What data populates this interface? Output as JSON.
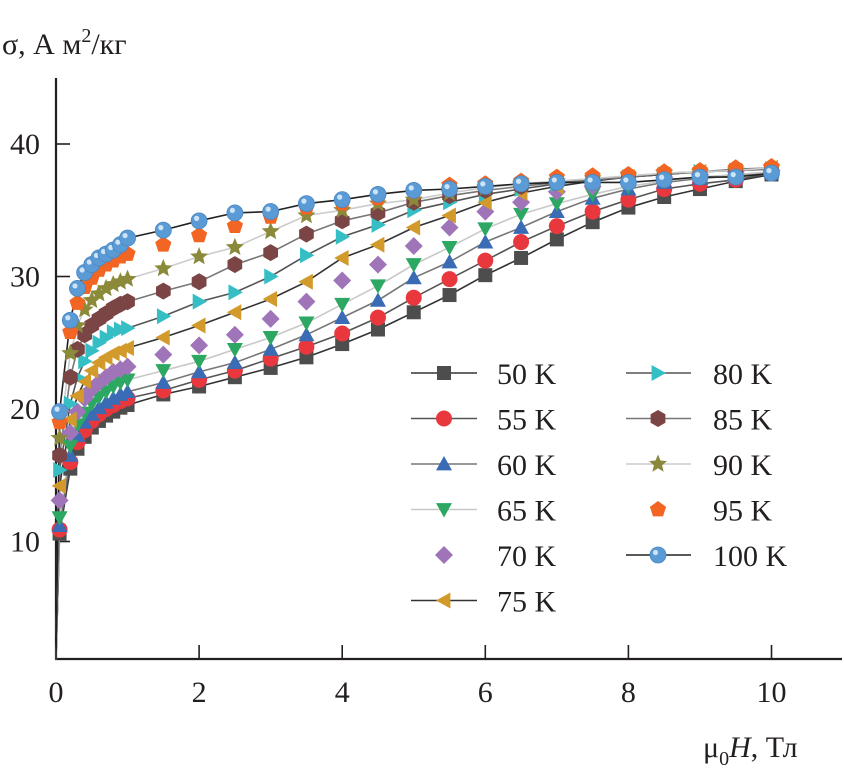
{
  "chart_data": {
    "type": "line",
    "title": "",
    "ylabel": "σ, А м²/кг",
    "ylabel_parts": {
      "main": "σ, А м",
      "sup": "2",
      "tail": "/кг"
    },
    "xlabel": "μ₀H, Тл",
    "xlabel_parts": {
      "mu": "μ",
      "sub": "0",
      "var": "H",
      "tail": ", Тл"
    },
    "xlim": [
      0,
      11
    ],
    "ylim": [
      1.1,
      45
    ],
    "xticks": [
      0,
      2,
      4,
      6,
      8,
      10
    ],
    "xtick_labels": [
      "0",
      "2",
      "4",
      "6",
      "8",
      "10"
    ],
    "yticks": [
      10,
      20,
      30,
      40
    ],
    "ytick_labels": [
      "10",
      "20",
      "30",
      "40"
    ],
    "grid": false,
    "legend_position": "center-right",
    "x": [
      0,
      0.05,
      0.2,
      0.3,
      0.4,
      0.5,
      0.6,
      0.7,
      0.8,
      0.9,
      1.0,
      1.5,
      2,
      2.5,
      3,
      3.5,
      4,
      4.5,
      5,
      5.5,
      6,
      6.5,
      7,
      7.5,
      8,
      8.5,
      9,
      9.5,
      10
    ],
    "series": [
      {
        "name": "50 K",
        "marker": "square",
        "color": "#4d4d4d",
        "line": "#333333",
        "values": [
          1.1,
          10.6,
          15.5,
          17.0,
          17.9,
          18.6,
          19.1,
          19.5,
          19.8,
          20.1,
          20.3,
          21.1,
          21.7,
          22.4,
          23.1,
          23.9,
          24.9,
          26.0,
          27.3,
          28.6,
          30.1,
          31.4,
          32.8,
          34.1,
          35.2,
          36.0,
          36.6,
          37.2,
          37.7
        ]
      },
      {
        "name": "55 K",
        "marker": "circle",
        "color": "#e8383d",
        "line": "#555555",
        "values": [
          1.1,
          10.9,
          16.0,
          17.5,
          18.4,
          19.1,
          19.6,
          20.0,
          20.3,
          20.6,
          20.8,
          21.4,
          22.2,
          22.9,
          23.8,
          24.7,
          25.7,
          26.9,
          28.4,
          29.8,
          31.2,
          32.6,
          33.8,
          34.9,
          35.8,
          36.6,
          37.0,
          37.3,
          37.8
        ]
      },
      {
        "name": "60 K",
        "marker": "triangle-up",
        "color": "#3a6bb5",
        "line": "#777777",
        "values": [
          1.1,
          11.2,
          16.5,
          18.0,
          19.0,
          19.6,
          20.1,
          20.5,
          20.8,
          21.1,
          21.3,
          22.0,
          22.8,
          23.5,
          24.5,
          25.6,
          26.9,
          28.2,
          29.9,
          31.1,
          32.6,
          33.7,
          34.9,
          35.9,
          36.6,
          37.1,
          37.4,
          37.6,
          37.9
        ]
      },
      {
        "name": "65 K",
        "marker": "triangle-down",
        "color": "#2ca862",
        "line": "#c8c8c8",
        "values": [
          1.1,
          11.8,
          17.2,
          18.8,
          19.7,
          20.4,
          20.9,
          21.3,
          21.7,
          22.0,
          22.2,
          22.9,
          23.6,
          24.5,
          25.4,
          26.5,
          27.9,
          29.3,
          30.9,
          32.2,
          33.6,
          34.7,
          35.5,
          36.2,
          36.8,
          37.2,
          37.5,
          37.7,
          37.9
        ]
      },
      {
        "name": "70 K",
        "marker": "diamond",
        "color": "#a074b8",
        "line": "none",
        "values": [
          1.1,
          13.1,
          18.2,
          19.8,
          20.8,
          21.5,
          22.0,
          22.4,
          22.8,
          23.0,
          23.2,
          24.1,
          24.8,
          25.6,
          26.8,
          28.1,
          29.7,
          30.9,
          32.3,
          33.7,
          34.9,
          35.6,
          36.4,
          36.8,
          37.2,
          37.5,
          37.7,
          37.9,
          38.0
        ]
      },
      {
        "name": "75 K",
        "marker": "triangle-left",
        "color": "#d29a2a",
        "line": "#333333",
        "values": [
          1.1,
          14.2,
          19.2,
          21.0,
          22.1,
          22.9,
          23.5,
          23.9,
          24.2,
          24.4,
          24.6,
          25.4,
          26.3,
          27.3,
          28.3,
          29.6,
          31.4,
          32.4,
          33.7,
          34.6,
          35.6,
          36.3,
          36.8,
          37.2,
          37.5,
          37.7,
          37.9,
          38.0,
          38.2
        ]
      },
      {
        "name": "80 K",
        "marker": "triangle-right",
        "color": "#35bfc5",
        "line": "#555555",
        "values": [
          1.1,
          15.4,
          20.4,
          22.4,
          23.6,
          24.4,
          25.0,
          25.4,
          25.8,
          26.0,
          26.1,
          27.0,
          28.1,
          28.8,
          30.0,
          31.6,
          33.0,
          33.9,
          35.0,
          35.6,
          36.2,
          36.6,
          37.0,
          37.3,
          37.5,
          37.7,
          37.9,
          38.0,
          38.1
        ]
      },
      {
        "name": "85 K",
        "marker": "hexagon",
        "color": "#7a4544",
        "line": "#777777",
        "values": [
          1.1,
          16.5,
          22.4,
          24.5,
          25.6,
          26.3,
          26.8,
          27.2,
          27.6,
          27.9,
          28.1,
          28.9,
          29.6,
          30.9,
          31.8,
          33.2,
          34.2,
          34.8,
          35.6,
          36.1,
          36.5,
          36.8,
          37.1,
          37.3,
          37.5,
          37.8,
          37.9,
          38.1,
          38.2
        ]
      },
      {
        "name": "90 K",
        "marker": "star",
        "color": "#8a8a3a",
        "line": "#cccccc",
        "values": [
          1.1,
          17.8,
          24.2,
          26.3,
          27.5,
          28.2,
          28.7,
          29.1,
          29.4,
          29.6,
          29.8,
          30.6,
          31.5,
          32.2,
          33.4,
          34.6,
          35.0,
          35.5,
          35.8,
          36.3,
          36.7,
          37.0,
          37.2,
          37.4,
          37.6,
          37.8,
          37.9,
          38.0,
          38.2
        ]
      },
      {
        "name": "95 K",
        "marker": "pentagon",
        "color": "#f26522",
        "line": "none",
        "values": [
          1.1,
          19.0,
          25.8,
          28.0,
          29.2,
          29.9,
          30.5,
          30.9,
          31.2,
          31.5,
          31.7,
          32.4,
          33.1,
          33.8,
          34.5,
          35.2,
          35.5,
          35.9,
          36.4,
          36.9,
          37.0,
          37.2,
          37.5,
          37.6,
          37.7,
          37.9,
          38.0,
          38.2,
          38.3
        ]
      },
      {
        "name": "100 K",
        "marker": "sphere",
        "color": "#5b9bd5",
        "line": "#222222",
        "values": [
          1.1,
          19.8,
          26.7,
          29.1,
          30.3,
          30.9,
          31.4,
          31.7,
          32.0,
          32.4,
          32.9,
          33.5,
          34.2,
          34.8,
          34.9,
          35.5,
          35.8,
          36.2,
          36.5,
          36.6,
          36.8,
          37.0,
          37.1,
          37.1,
          37.1,
          37.3,
          37.5,
          37.5,
          37.8
        ]
      }
    ]
  }
}
